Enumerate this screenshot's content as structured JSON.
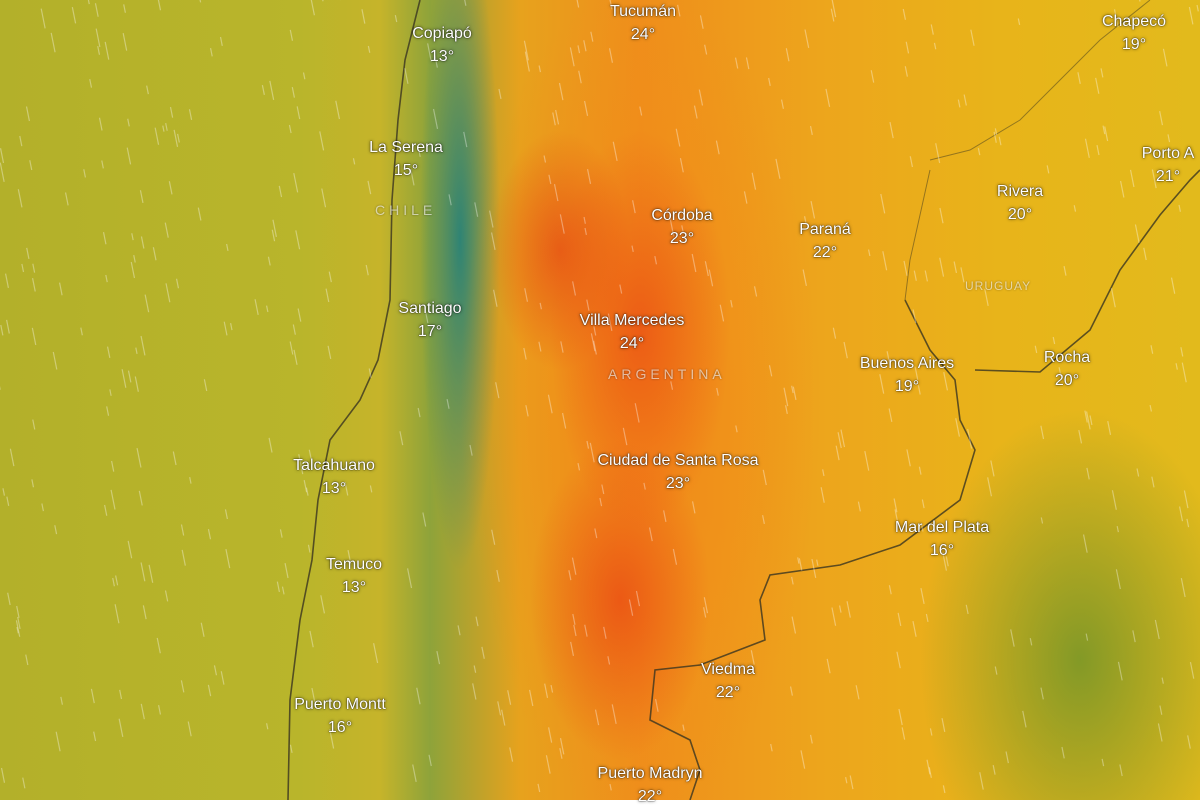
{
  "map": {
    "layer": "temperature",
    "colors": {
      "ocean": "#b5b22a",
      "andes": "#2f8a7c",
      "hot": "#ee7a1c",
      "warm": "#e8b41a",
      "cool": "#7e9e38"
    }
  },
  "countries": [
    {
      "name": "CHILE"
    },
    {
      "name": "ARGENTINA"
    },
    {
      "name": "URUGUAY"
    }
  ],
  "cities": [
    {
      "name": "Tucumán",
      "temp": "24°"
    },
    {
      "name": "Copiapó",
      "temp": "13°"
    },
    {
      "name": "Chapecó",
      "temp": "19°"
    },
    {
      "name": "La Serena",
      "temp": "15°"
    },
    {
      "name": "Porto A",
      "temp": "21°"
    },
    {
      "name": "Córdoba",
      "temp": "23°"
    },
    {
      "name": "Paraná",
      "temp": "22°"
    },
    {
      "name": "Rivera",
      "temp": "20°"
    },
    {
      "name": "Santiago",
      "temp": "17°"
    },
    {
      "name": "Villa Mercedes",
      "temp": "24°"
    },
    {
      "name": "Buenos Aires",
      "temp": "19°"
    },
    {
      "name": "Rocha",
      "temp": "20°"
    },
    {
      "name": "Talcahuano",
      "temp": "13°"
    },
    {
      "name": "Ciudad de Santa Rosa",
      "temp": "23°"
    },
    {
      "name": "Mar del Plata",
      "temp": "16°"
    },
    {
      "name": "Temuco",
      "temp": "13°"
    },
    {
      "name": "Viedma",
      "temp": "22°"
    },
    {
      "name": "Puerto Montt",
      "temp": "16°"
    },
    {
      "name": "Puerto Madryn",
      "temp": "22°"
    }
  ]
}
